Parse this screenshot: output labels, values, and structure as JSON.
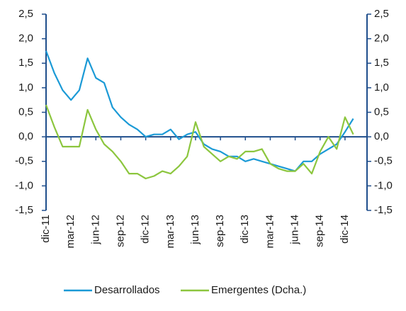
{
  "chart_data": {
    "type": "line",
    "categories": [
      "dic-11",
      null,
      null,
      "mar-12",
      null,
      null,
      "jun-12",
      null,
      null,
      "sep-12",
      null,
      null,
      "dic-12",
      null,
      null,
      "mar-13",
      null,
      null,
      "jun-13",
      null,
      null,
      "sep-13",
      null,
      null,
      "dic-13",
      null,
      null,
      "mar-14",
      null,
      null,
      "jun-14",
      null,
      null,
      "sep-14",
      null,
      null,
      "dic-14",
      null
    ],
    "series": [
      {
        "name": "Desarrollados",
        "color": "#1b9ad6",
        "axis": "y",
        "values": [
          1.75,
          1.3,
          0.95,
          0.75,
          0.95,
          1.6,
          1.2,
          1.1,
          0.6,
          0.4,
          0.25,
          0.15,
          0.0,
          0.05,
          0.05,
          0.15,
          -0.05,
          0.05,
          0.1,
          -0.15,
          -0.25,
          -0.3,
          -0.4,
          -0.4,
          -0.5,
          -0.45,
          -0.5,
          -0.55,
          -0.6,
          -0.65,
          -0.7,
          -0.5,
          -0.5,
          -0.35,
          -0.25,
          -0.15,
          0.1,
          0.37
        ]
      },
      {
        "name": "Emergentes (Dcha.)",
        "color": "#8cc63e",
        "axis": "y2",
        "values": [
          0.65,
          0.2,
          -0.2,
          -0.2,
          -0.2,
          0.55,
          0.15,
          -0.15,
          -0.3,
          -0.5,
          -0.75,
          -0.75,
          -0.85,
          -0.8,
          -0.7,
          -0.75,
          -0.6,
          -0.4,
          0.3,
          -0.2,
          -0.35,
          -0.5,
          -0.4,
          -0.45,
          -0.3,
          -0.3,
          -0.25,
          -0.55,
          -0.65,
          -0.7,
          -0.7,
          -0.55,
          -0.75,
          -0.3,
          0.0,
          -0.25,
          0.4,
          0.05
        ]
      }
    ],
    "ylim": [
      -1.5,
      2.5
    ],
    "yticks": [
      {
        "value": -1.5,
        "label": "-1,5"
      },
      {
        "value": -1.0,
        "label": "-1,0"
      },
      {
        "value": -0.5,
        "label": "-0,5"
      },
      {
        "value": 0.0,
        "label": "0,0"
      },
      {
        "value": 0.5,
        "label": "0,5"
      },
      {
        "value": 1.0,
        "label": "1,0"
      },
      {
        "value": 1.5,
        "label": "1,5"
      },
      {
        "value": 2.0,
        "label": "2,0"
      },
      {
        "value": 2.5,
        "label": "2,5"
      }
    ],
    "y2lim": [
      -1.5,
      2.5
    ],
    "y2ticks": [
      {
        "value": -1.5,
        "label": "-1,5"
      },
      {
        "value": -1.0,
        "label": "-1,0"
      },
      {
        "value": -0.5,
        "label": "-0,5"
      },
      {
        "value": 0.0,
        "label": "0,0"
      },
      {
        "value": 0.5,
        "label": "0,5"
      },
      {
        "value": 1.0,
        "label": "1,0"
      },
      {
        "value": 1.5,
        "label": "1,5"
      },
      {
        "value": 2.0,
        "label": "2,0"
      },
      {
        "value": 2.5,
        "label": "2,5"
      }
    ],
    "legend": "bottom"
  }
}
